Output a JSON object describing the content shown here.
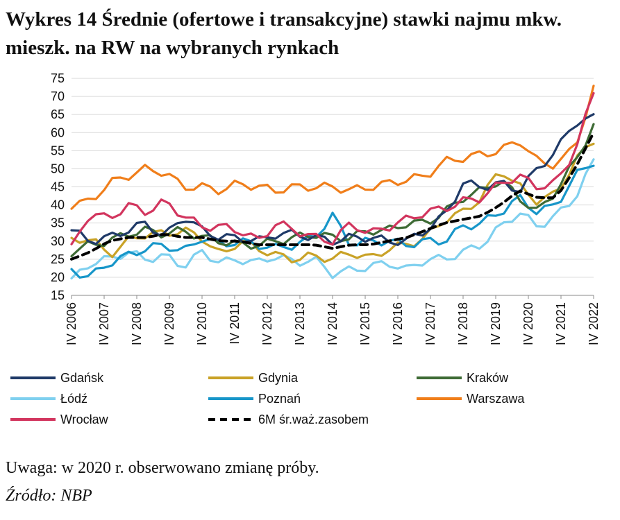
{
  "title": "Wykres 14 Średnie (ofertowe i transakcyjne) stawki najmu mkw. mieszk. na RW na wybranych rynkach",
  "note": "Uwaga: w 2020 r. obserwowano zmianę próby.",
  "source": "Źródło: NBP",
  "chart_data": {
    "type": "line",
    "title": "",
    "xlabel": "",
    "ylabel": "",
    "ylim": [
      15,
      75
    ],
    "yticks": [
      15,
      20,
      25,
      30,
      35,
      40,
      45,
      50,
      55,
      60,
      65,
      70,
      75
    ],
    "grid": "horizontal",
    "legend_position": "bottom",
    "x_tick_labels": [
      "IV 2006",
      "IV 2007",
      "IV 2008",
      "IV 2009",
      "IV 2010",
      "IV 2011",
      "IV 2012",
      "IV 2013",
      "IV 2014",
      "IV 2015",
      "IV 2016",
      "IV 2017",
      "IV 2018",
      "IV 2019",
      "IV 2020",
      "IV 2021",
      "IV 2022"
    ],
    "x_quarter_count": 65,
    "series": [
      {
        "name": "Gdańsk",
        "color": "#1f3a68",
        "dash": "solid",
        "anchors": [
          33,
          30,
          31,
          33,
          35,
          31,
          37,
          33,
          31,
          31,
          30,
          32,
          32,
          31,
          30,
          31,
          31,
          30,
          30,
          33,
          37,
          46,
          45,
          46,
          44,
          50,
          55,
          63,
          64
        ]
      },
      {
        "name": "Gdynia",
        "color": "#c9a227",
        "dash": "solid",
        "anchors": [
          30,
          31,
          26,
          30,
          32,
          32,
          33,
          31,
          26,
          30,
          28,
          26,
          25,
          26,
          25,
          27,
          25,
          28,
          29,
          31,
          36,
          38,
          42,
          50,
          45,
          41,
          43,
          52,
          58
        ]
      },
      {
        "name": "Kraków",
        "color": "#3e6b35",
        "dash": "solid",
        "anchors": [
          27,
          29,
          30,
          32,
          33,
          32,
          33,
          31,
          30,
          29,
          29,
          30,
          31,
          32,
          31,
          31,
          33,
          33,
          35,
          35,
          38,
          42,
          44,
          47,
          42,
          38,
          44,
          52,
          62
        ]
      },
      {
        "name": "Łódź",
        "color": "#7fd0ef",
        "dash": "solid",
        "anchors": [
          19,
          24,
          25,
          27,
          25,
          26,
          23,
          27,
          24,
          25,
          24,
          26,
          24,
          25,
          21,
          22,
          23,
          24,
          22,
          25,
          25,
          27,
          29,
          34,
          38,
          34,
          37,
          42,
          52
        ]
      },
      {
        "name": "Poznań",
        "color": "#1796c9",
        "dash": "solid",
        "anchors": [
          22,
          20,
          24,
          26,
          28,
          29,
          27,
          31,
          29,
          30,
          29,
          28,
          29,
          31,
          37,
          29,
          30,
          30,
          29,
          30,
          30,
          34,
          35,
          38,
          42,
          38,
          40,
          48,
          52
        ]
      },
      {
        "name": "Warszawa",
        "color": "#f07e1a",
        "dash": "solid",
        "anchors": [
          40,
          41,
          46,
          48,
          50,
          49,
          45,
          45,
          44,
          46,
          45,
          44,
          45,
          45,
          45,
          44,
          45,
          46,
          47,
          48,
          52,
          53,
          54,
          55,
          58,
          52,
          51,
          56,
          72
        ]
      },
      {
        "name": "Wrocław",
        "color": "#d2355e",
        "dash": "solid",
        "anchors": [
          28,
          38,
          36,
          40,
          38,
          41,
          37,
          34,
          34,
          33,
          30,
          35,
          33,
          31,
          30,
          35,
          32,
          34,
          36,
          38,
          39,
          41,
          42,
          46,
          48,
          45,
          46,
          55,
          71
        ]
      },
      {
        "name": "6M śr.waż.zasobem",
        "color": "#000000",
        "dash": "dashed",
        "anchors": [
          25,
          27,
          30,
          31,
          31,
          32,
          31,
          31,
          30,
          30,
          29,
          29,
          29,
          29,
          28,
          29,
          29,
          30,
          31,
          33,
          35,
          36,
          37,
          40,
          44,
          42,
          42,
          50,
          60
        ]
      }
    ]
  }
}
